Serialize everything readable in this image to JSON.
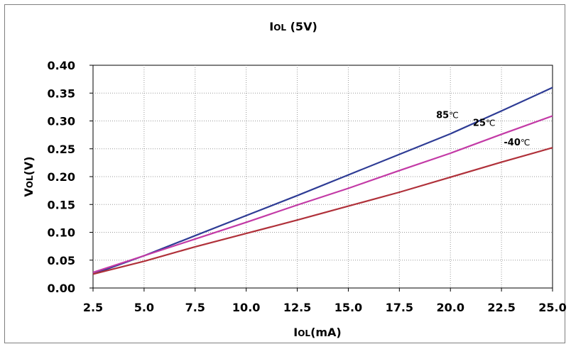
{
  "chart_data": {
    "type": "line",
    "title_main": "I",
    "title_sub": "OL",
    "title_rest": " (5V)",
    "xlabel_main": "I",
    "xlabel_sub": "OL",
    "xlabel_rest": "(mA)",
    "ylabel_main": "V",
    "ylabel_sub": "OL",
    "ylabel_rest": "(V)",
    "xlim": [
      2.5,
      25.0
    ],
    "ylim": [
      0.0,
      0.4
    ],
    "xticks": [
      "2.5",
      "5.0",
      "7.5",
      "10.0",
      "12.5",
      "15.0",
      "17.5",
      "20.0",
      "22.5",
      "25.0"
    ],
    "yticks": [
      "0.00",
      "0.05",
      "0.10",
      "0.15",
      "0.20",
      "0.25",
      "0.30",
      "0.35",
      "0.40"
    ],
    "grid": true,
    "series": [
      {
        "name": "85",
        "unit": "℃",
        "color": "#2e3c95",
        "points": [
          [
            2.5,
            0.025
          ],
          [
            5.0,
            0.058
          ],
          [
            7.5,
            0.094
          ],
          [
            10.0,
            0.13
          ],
          [
            12.5,
            0.166
          ],
          [
            15.0,
            0.203
          ],
          [
            17.5,
            0.24
          ],
          [
            20.0,
            0.277
          ],
          [
            22.5,
            0.318
          ],
          [
            25.0,
            0.36
          ]
        ]
      },
      {
        "name": "25",
        "unit": "℃",
        "color": "#c33aa6",
        "points": [
          [
            2.5,
            0.028
          ],
          [
            5.0,
            0.058
          ],
          [
            7.5,
            0.088
          ],
          [
            10.0,
            0.118
          ],
          [
            12.5,
            0.149
          ],
          [
            15.0,
            0.179
          ],
          [
            17.5,
            0.211
          ],
          [
            20.0,
            0.242
          ],
          [
            22.5,
            0.276
          ],
          [
            25.0,
            0.309
          ]
        ]
      },
      {
        "name": "-40",
        "unit": "℃",
        "color": "#b0313a",
        "points": [
          [
            2.5,
            0.025
          ],
          [
            5.0,
            0.048
          ],
          [
            7.5,
            0.074
          ],
          [
            10.0,
            0.098
          ],
          [
            12.5,
            0.122
          ],
          [
            15.0,
            0.147
          ],
          [
            17.5,
            0.172
          ],
          [
            20.0,
            0.199
          ],
          [
            22.5,
            0.226
          ],
          [
            25.0,
            0.252
          ]
        ]
      }
    ]
  }
}
